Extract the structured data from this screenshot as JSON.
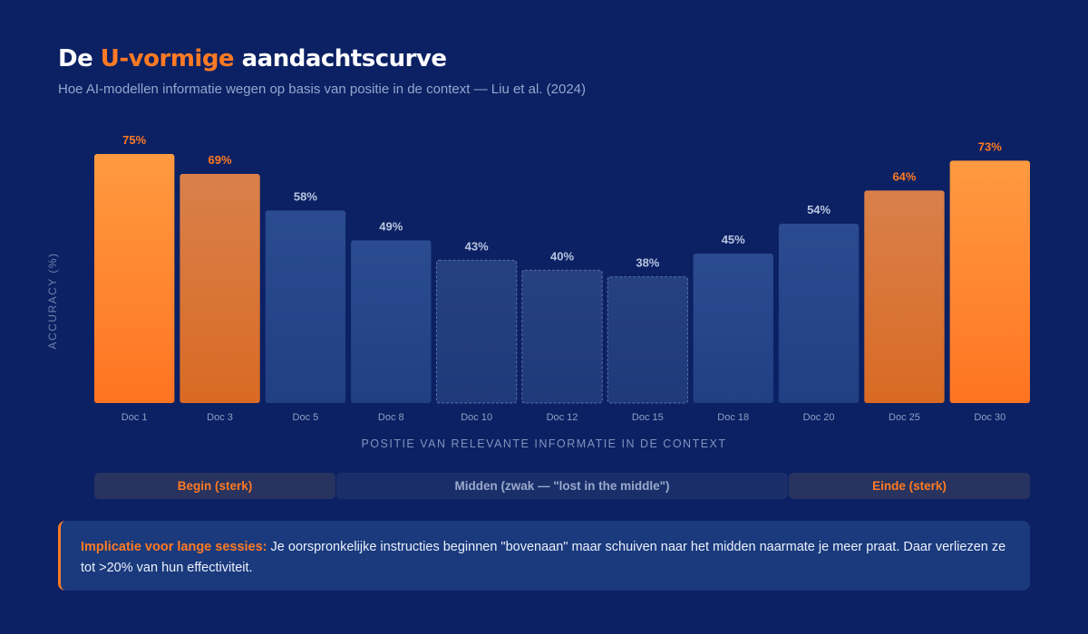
{
  "header": {
    "title_pre": "De ",
    "title_accent": "U-vormige",
    "title_post": " aandachtscurve",
    "subtitle": "Hoe AI-modellen informatie wegen op basis van positie in de context — Liu et al. (2024)"
  },
  "chart_data": {
    "type": "bar",
    "title": "De U-vormige aandachtscurve",
    "categories": [
      "Doc 1",
      "Doc 3",
      "Doc 5",
      "Doc 8",
      "Doc 10",
      "Doc 12",
      "Doc 15",
      "Doc 18",
      "Doc 20",
      "Doc 25",
      "Doc 30"
    ],
    "values": [
      75,
      69,
      58,
      49,
      43,
      40,
      38,
      45,
      54,
      64,
      73
    ],
    "data_labels": [
      "75%",
      "69%",
      "58%",
      "49%",
      "43%",
      "40%",
      "38%",
      "45%",
      "54%",
      "64%",
      "73%"
    ],
    "bar_styles": [
      "strong",
      "medium",
      "neutral",
      "neutral",
      "weak",
      "weak",
      "weak",
      "neutral",
      "neutral",
      "medium",
      "strong"
    ],
    "xlabel": "POSITIE VAN RELEVANTE INFORMATIE IN DE CONTEXT",
    "ylabel": "ACCURACY (%)",
    "ylim": [
      0,
      75
    ],
    "grid": false,
    "colors": {
      "strong": "#ff7a24",
      "medium": "#d97432",
      "neutral": "#27488d",
      "weak": "#233f80",
      "label_strong": "#ff7a24",
      "label_neutral": "#b9c5e0"
    }
  },
  "zones": {
    "begin": "Begin (sterk)",
    "middle": "Midden (zwak — \"lost in the middle\")",
    "end": "Einde (sterk)"
  },
  "callout": {
    "lead": "Implicatie voor lange sessies:",
    "text": " Je oorspronkelijke instructies beginnen \"bovenaan\" maar schuiven naar het midden naarmate je meer praat. Daar verliezen ze tot >20% van hun effectiviteit."
  }
}
